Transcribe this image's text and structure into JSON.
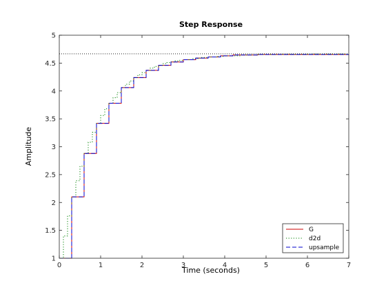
{
  "chart_data": {
    "type": "line",
    "title": "Step Response",
    "xlabel": "Time (seconds)",
    "ylabel": "Amplitude",
    "xlim": [
      0,
      7
    ],
    "ylim": [
      1,
      5
    ],
    "xticks": [
      0,
      1,
      2,
      3,
      4,
      5,
      6,
      7
    ],
    "yticks": [
      1,
      1.5,
      2,
      2.5,
      3,
      3.5,
      4,
      4.5,
      5
    ],
    "xtick_labels": [
      "0",
      "1",
      "2",
      "3",
      "4",
      "5",
      "6",
      "7"
    ],
    "ytick_labels": [
      "1",
      "1.5",
      "2",
      "2.5",
      "3",
      "3.5",
      "4",
      "4.5",
      "5"
    ],
    "steady_state": 4.667,
    "grid": false,
    "legend_position": "bottom-right",
    "series": [
      {
        "name": "G",
        "style": "solid",
        "color": "#cc0000",
        "step": true,
        "x": [
          0,
          0.3,
          0.6,
          0.9,
          1.2,
          1.5,
          1.8,
          2.1,
          2.4,
          2.7,
          3.0,
          3.3,
          3.6,
          3.9,
          4.2,
          4.8,
          7.0
        ],
        "y": [
          1.0,
          2.1,
          2.88,
          3.42,
          3.78,
          4.06,
          4.24,
          4.37,
          4.46,
          4.52,
          4.56,
          4.59,
          4.61,
          4.63,
          4.645,
          4.655,
          4.66
        ]
      },
      {
        "name": "d2d",
        "style": "dotted",
        "color": "#008000",
        "step": true,
        "x": [
          0,
          0.1,
          0.2,
          0.3,
          0.4,
          0.5,
          0.6,
          0.7,
          0.8,
          0.9,
          1.0,
          1.1,
          1.2,
          1.3,
          1.4,
          1.5,
          1.6,
          1.7,
          1.8,
          1.9,
          2.0,
          2.1,
          2.2,
          2.3,
          2.4,
          2.5,
          2.6,
          2.7,
          2.8,
          2.9,
          3.0,
          3.2,
          3.4,
          3.6,
          3.8,
          4.0,
          4.4,
          4.8,
          5.4,
          6.0,
          7.0
        ],
        "y": [
          1.0,
          1.4,
          1.76,
          2.1,
          2.39,
          2.65,
          2.88,
          3.08,
          3.26,
          3.42,
          3.56,
          3.68,
          3.78,
          3.88,
          3.97,
          4.06,
          4.12,
          4.18,
          4.24,
          4.29,
          4.33,
          4.37,
          4.41,
          4.44,
          4.46,
          4.49,
          4.51,
          4.52,
          4.54,
          4.55,
          4.56,
          4.58,
          4.6,
          4.61,
          4.62,
          4.63,
          4.645,
          4.655,
          4.66,
          4.663,
          4.665
        ]
      },
      {
        "name": "upsample",
        "style": "dashed",
        "color": "#0000cc",
        "step": true,
        "x": [
          0,
          0.3,
          0.6,
          0.9,
          1.2,
          1.5,
          1.8,
          2.1,
          2.4,
          2.7,
          3.0,
          3.3,
          3.6,
          3.9,
          4.2,
          4.8,
          7.0
        ],
        "y": [
          1.0,
          2.1,
          2.88,
          3.42,
          3.78,
          4.06,
          4.24,
          4.37,
          4.46,
          4.52,
          4.56,
          4.59,
          4.61,
          4.63,
          4.645,
          4.655,
          4.66
        ]
      }
    ]
  }
}
